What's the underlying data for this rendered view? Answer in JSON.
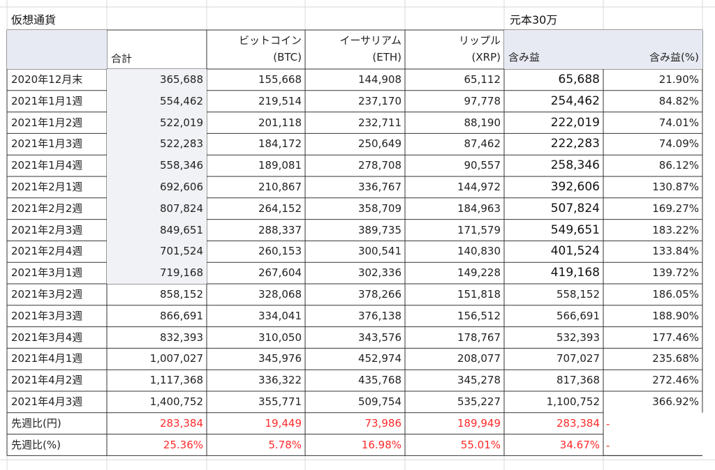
{
  "sheet": {
    "title": "仮想通貨",
    "principal": "元本30万",
    "headers": {
      "total": "合計",
      "btc_line1": "ビットコイン",
      "btc_line2": "(BTC)",
      "eth_line1": "イーサリアム",
      "eth_line2": "(ETH)",
      "xrp_line1": "リップル",
      "xrp_line2": "(XRP)",
      "gain": "含み益",
      "gain_pct": "含み益(%)"
    },
    "rows": [
      [
        "2020年12月末",
        "365,688",
        "155,668",
        "144,908",
        "65,112",
        "65,688",
        "21.90%"
      ],
      [
        "2021年1月1週",
        "554,462",
        "219,514",
        "237,170",
        "97,778",
        "254,462",
        "84.82%"
      ],
      [
        "2021年1月2週",
        "522,019",
        "201,118",
        "232,711",
        "88,190",
        "222,019",
        "74.01%"
      ],
      [
        "2021年1月3週",
        "522,283",
        "184,172",
        "250,649",
        "87,462",
        "222,283",
        "74.09%"
      ],
      [
        "2021年1月4週",
        "558,346",
        "189,081",
        "278,708",
        "90,557",
        "258,346",
        "86.12%"
      ],
      [
        "2021年2月1週",
        "692,606",
        "210,867",
        "336,767",
        "144,972",
        "392,606",
        "130.87%"
      ],
      [
        "2021年2月2週",
        "807,824",
        "264,152",
        "358,709",
        "184,963",
        "507,824",
        "169.27%"
      ],
      [
        "2021年2月3週",
        "849,651",
        "288,337",
        "389,735",
        "171,579",
        "549,651",
        "183.22%"
      ],
      [
        "2021年2月4週",
        "701,524",
        "260,153",
        "300,541",
        "140,830",
        "401,524",
        "133.84%"
      ],
      [
        "2021年3月1週",
        "719,168",
        "267,604",
        "302,336",
        "149,228",
        "419,168",
        "139.72%"
      ],
      [
        "2021年3月2週",
        "858,152",
        "328,068",
        "378,266",
        "151,818",
        "558,152",
        "186.05%"
      ],
      [
        "2021年3月3週",
        "866,691",
        "334,041",
        "376,138",
        "156,512",
        "566,691",
        "188.90%"
      ],
      [
        "2021年3月4週",
        "832,393",
        "310,050",
        "343,576",
        "178,767",
        "532,393",
        "177.46%"
      ],
      [
        "2021年4月1週",
        "1,007,027",
        "345,976",
        "452,974",
        "208,077",
        "707,027",
        "235.68%"
      ],
      [
        "2021年4月2週",
        "1,117,368",
        "336,322",
        "435,768",
        "345,278",
        "817,368",
        "272.46%"
      ],
      [
        "2021年4月3週",
        "1,400,752",
        "355,771",
        "509,754",
        "535,227",
        "1,100,752",
        "366.92%"
      ]
    ],
    "diff_rows": [
      [
        "先週比(円)",
        "283,384",
        "19,449",
        "73,986",
        "189,949",
        "283,384",
        "-"
      ],
      [
        "先週比(%)",
        "25.36%",
        "5.78%",
        "16.98%",
        "55.01%",
        "34.67%",
        "-"
      ]
    ]
  }
}
